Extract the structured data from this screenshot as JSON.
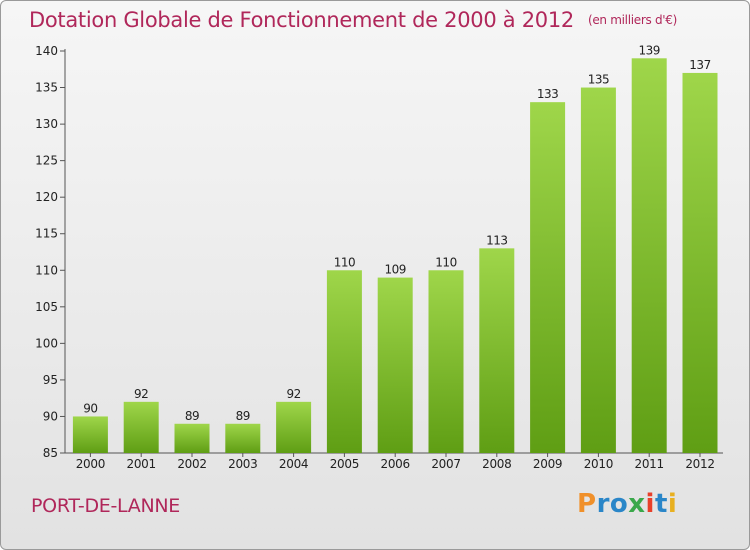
{
  "title": "Dotation Globale de Fonctionnement de 2000 à 2012",
  "unit": "(en milliers d'€)",
  "city": "PORT-DE-LANNE",
  "logo": {
    "letters": [
      "P",
      "r",
      "o",
      "x",
      "i",
      "t",
      "i"
    ],
    "colors": [
      "#f0902a",
      "#2a86c8",
      "#2a86c8",
      "#3aa84a",
      "#e8402a",
      "#2a86c8",
      "#e8b020"
    ]
  },
  "chart_data": {
    "type": "bar",
    "title": "Dotation Globale de Fonctionnement de 2000 à 2012",
    "categories": [
      "2000",
      "2001",
      "2002",
      "2003",
      "2004",
      "2005",
      "2006",
      "2007",
      "2008",
      "2009",
      "2010",
      "2011",
      "2012"
    ],
    "values": [
      90,
      92,
      89,
      89,
      92,
      110,
      109,
      110,
      113,
      133,
      135,
      139,
      137
    ],
    "ylim": [
      85,
      140
    ],
    "yticks": [
      85,
      90,
      95,
      100,
      105,
      110,
      115,
      120,
      125,
      130,
      135,
      140
    ],
    "grid": false,
    "bar_color": "#7cbf2e"
  }
}
